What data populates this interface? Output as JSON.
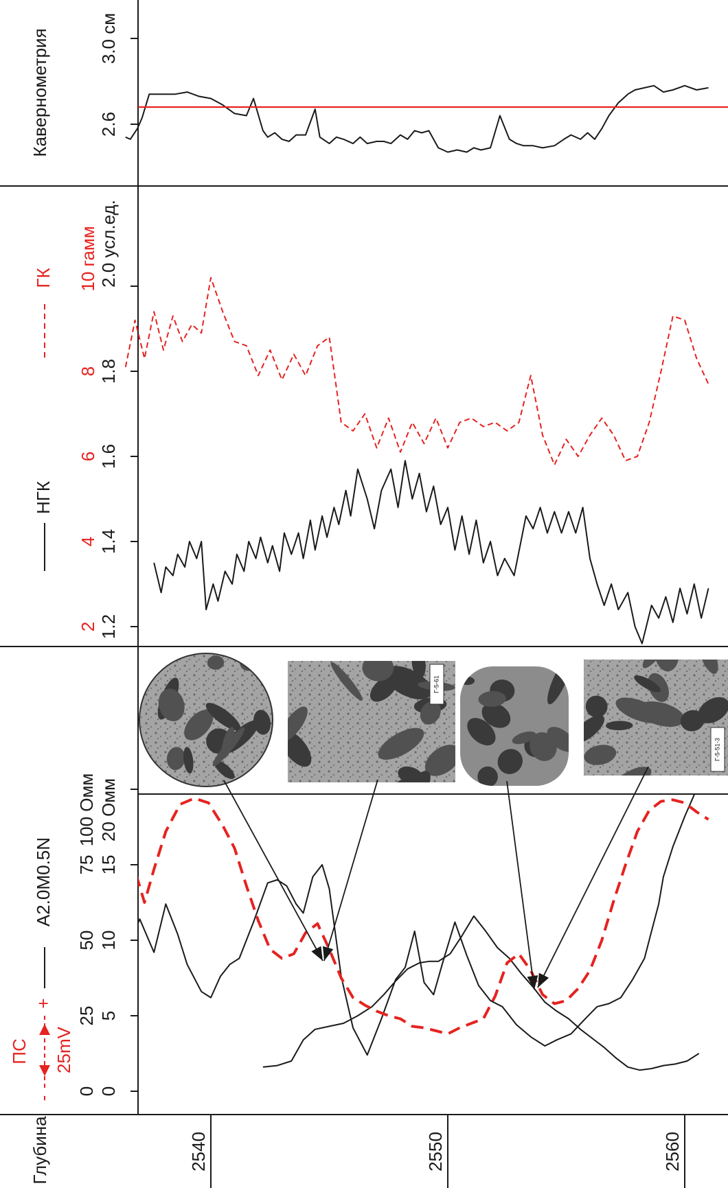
{
  "chart_data": {
    "type": "line",
    "orientation": "depth axis horizontal (figure rotated 90 degrees)",
    "depth_axis": {
      "label": "Глубина",
      "ticks": [
        2540,
        2550,
        2560
      ],
      "range": [
        2536.3,
        2561.2
      ]
    },
    "tracks": [
      {
        "id": "caliper",
        "label": "Кавернометрия",
        "unit_tick_labels": [
          "2.6",
          "3.0 см"
        ],
        "ticks": [
          2.6,
          3.0
        ],
        "series": [
          {
            "name": "Кавернометрия",
            "color": "#1a1a1a",
            "style": "solid",
            "depth": [
              2536.4,
              2536.6,
              2536.9,
              2537.1,
              2537.4,
              2538.0,
              2538.5,
              2539.0,
              2539.5,
              2540.0,
              2540.5,
              2541.0,
              2541.5,
              2541.8,
              2542.2,
              2542.4,
              2542.7,
              2543.0,
              2543.3,
              2543.6,
              2544.0,
              2544.4,
              2544.6,
              2545.0,
              2545.3,
              2545.6,
              2546.0,
              2546.3,
              2546.6,
              2547.0,
              2547.3,
              2547.6,
              2548.0,
              2548.3,
              2548.6,
              2548.9,
              2549.2,
              2549.6,
              2550.0,
              2550.4,
              2550.8,
              2551.1,
              2551.4,
              2551.8,
              2552.2,
              2552.6,
              2552.9,
              2553.2,
              2553.6,
              2554.0,
              2554.5,
              2554.9,
              2555.2,
              2555.6,
              2555.9,
              2556.2,
              2556.5,
              2556.8,
              2557.2,
              2557.6,
              2557.9,
              2558.3,
              2558.7,
              2559.1,
              2559.5,
              2560.0,
              2560.5,
              2561.0
            ],
            "values": [
              2.54,
              2.53,
              2.58,
              2.63,
              2.74,
              2.74,
              2.74,
              2.75,
              2.73,
              2.72,
              2.69,
              2.65,
              2.64,
              2.72,
              2.57,
              2.54,
              2.56,
              2.53,
              2.52,
              2.55,
              2.55,
              2.67,
              2.54,
              2.51,
              2.54,
              2.53,
              2.51,
              2.54,
              2.51,
              2.52,
              2.52,
              2.51,
              2.55,
              2.53,
              2.57,
              2.56,
              2.57,
              2.49,
              2.47,
              2.48,
              2.47,
              2.49,
              2.48,
              2.49,
              2.64,
              2.53,
              2.51,
              2.5,
              2.5,
              2.49,
              2.5,
              2.53,
              2.55,
              2.53,
              2.56,
              2.53,
              2.58,
              2.64,
              2.7,
              2.74,
              2.76,
              2.77,
              2.78,
              2.75,
              2.76,
              2.78,
              2.76,
              2.77
            ]
          },
          {
            "name": "reference line",
            "color": "#e52320",
            "style": "solid",
            "value": 2.68
          }
        ]
      },
      {
        "id": "gamma",
        "label_gk": "ГК",
        "label_ngk": "НГК",
        "gk_unit": "гамм",
        "ngk_unit": "усл.ед.",
        "ngk_ticks": [
          "1.2",
          "1.4",
          "1.6",
          "1.8",
          "2.0 усл.ед."
        ],
        "gk_ticks": [
          "2",
          "4",
          "6",
          "8",
          "10 гамм"
        ],
        "series": [
          {
            "name": "НГК",
            "color": "#1a1a1a",
            "style": "solid",
            "depth": [
              2537.6,
              2537.9,
              2538.1,
              2538.4,
              2538.6,
              2538.9,
              2539.1,
              2539.4,
              2539.6,
              2539.8,
              2540.1,
              2540.3,
              2540.6,
              2540.9,
              2541.1,
              2541.4,
              2541.6,
              2541.9,
              2542.1,
              2542.4,
              2542.6,
              2542.9,
              2543.1,
              2543.4,
              2543.7,
              2543.9,
              2544.2,
              2544.4,
              2544.7,
              2544.9,
              2545.2,
              2545.4,
              2545.7,
              2545.9,
              2546.2,
              2546.6,
              2546.9,
              2547.2,
              2547.6,
              2547.9,
              2548.2,
              2548.5,
              2548.8,
              2549.1,
              2549.4,
              2549.7,
              2550.0,
              2550.3,
              2550.6,
              2550.9,
              2551.2,
              2551.5,
              2551.8,
              2552.1,
              2552.4,
              2552.8,
              2553.3,
              2553.6,
              2553.9,
              2554.2,
              2554.5,
              2554.8,
              2555.1,
              2555.4,
              2555.7,
              2556.0,
              2556.3,
              2556.6,
              2556.9,
              2557.2,
              2557.6,
              2557.9,
              2558.2,
              2558.6,
              2558.9,
              2559.2,
              2559.5,
              2559.8,
              2560.1,
              2560.4,
              2560.7,
              2561.0
            ],
            "values": [
              1.35,
              1.28,
              1.34,
              1.32,
              1.37,
              1.34,
              1.4,
              1.36,
              1.4,
              1.24,
              1.3,
              1.26,
              1.33,
              1.3,
              1.37,
              1.33,
              1.4,
              1.36,
              1.41,
              1.35,
              1.39,
              1.33,
              1.42,
              1.37,
              1.42,
              1.36,
              1.45,
              1.38,
              1.46,
              1.41,
              1.48,
              1.44,
              1.52,
              1.46,
              1.57,
              1.5,
              1.43,
              1.52,
              1.57,
              1.48,
              1.59,
              1.5,
              1.56,
              1.47,
              1.53,
              1.44,
              1.48,
              1.38,
              1.46,
              1.37,
              1.45,
              1.35,
              1.4,
              1.32,
              1.36,
              1.32,
              1.46,
              1.43,
              1.48,
              1.42,
              1.47,
              1.42,
              1.47,
              1.42,
              1.48,
              1.36,
              1.3,
              1.25,
              1.3,
              1.24,
              1.28,
              1.2,
              1.16,
              1.25,
              1.22,
              1.27,
              1.21,
              1.29,
              1.23,
              1.3,
              1.22,
              1.29
            ]
          },
          {
            "name": "ГК",
            "color": "#e52320",
            "style": "dashed",
            "depth": [
              2536.4,
              2536.8,
              2537.2,
              2537.6,
              2538.0,
              2538.4,
              2538.8,
              2539.2,
              2539.6,
              2540.0,
              2540.5,
              2541.0,
              2541.5,
              2542.0,
              2542.5,
              2543.0,
              2543.5,
              2544.0,
              2544.5,
              2545.0,
              2545.5,
              2546.0,
              2546.5,
              2547.0,
              2547.5,
              2548.0,
              2548.5,
              2549.0,
              2549.5,
              2550.0,
              2550.5,
              2551.0,
              2551.5,
              2552.0,
              2552.5,
              2553.0,
              2553.5,
              2554.0,
              2554.5,
              2555.0,
              2555.5,
              2556.0,
              2556.5,
              2557.0,
              2557.5,
              2558.0,
              2558.5,
              2559.0,
              2559.5,
              2560.0,
              2560.5,
              2561.0
            ],
            "values": [
              8.1,
              9.2,
              8.3,
              9.4,
              8.5,
              9.3,
              8.7,
              9.1,
              8.9,
              10.2,
              9.4,
              8.7,
              8.6,
              7.9,
              8.5,
              7.8,
              8.4,
              7.9,
              8.6,
              8.8,
              6.8,
              6.6,
              7.0,
              6.2,
              6.9,
              6.1,
              6.8,
              6.3,
              6.9,
              6.2,
              6.8,
              6.9,
              6.7,
              6.8,
              6.6,
              6.8,
              7.9,
              6.5,
              5.8,
              6.4,
              6.0,
              6.5,
              6.9,
              6.5,
              5.9,
              6.0,
              6.8,
              8.0,
              9.3,
              9.2,
              8.3,
              7.7
            ]
          }
        ]
      },
      {
        "id": "resistivity",
        "label_ps": "ПС",
        "label_ps_scale": "25mV",
        "label_res": "A2.0M0.5N",
        "res_ticks_outer": [
          "0",
          "25",
          "50",
          "75",
          "100 Омм"
        ],
        "res_ticks_inner": [
          "0",
          "5",
          "10",
          "15",
          "20 Омм"
        ],
        "series": [
          {
            "name": "A2.0M0.5N",
            "color": "#1a1a1a",
            "style": "solid",
            "depth": [
              2536.4,
              2537.0,
              2537.6,
              2538.1,
              2538.6,
              2539.0,
              2539.6,
              2540.0,
              2540.4,
              2540.8,
              2541.2,
              2541.8,
              2542.4,
              2542.8,
              2543.2,
              2543.6,
              2543.9,
              2544.3,
              2544.7,
              2545.0,
              2545.5,
              2546.0,
              2546.6,
              2547.2,
              2547.8,
              2548.2,
              2548.6,
              2549.0,
              2549.4,
              2549.8,
              2550.3,
              2550.8,
              2551.3,
              2551.8,
              2552.3,
              2552.9,
              2553.5,
              2554.1,
              2554.6,
              2555.2,
              2555.8,
              2556.3,
              2556.8,
              2557.3,
              2557.8,
              2558.3,
              2558.6,
              2558.9,
              2559.1,
              2559.5,
              2560.0,
              2560.5,
              2561.0
            ],
            "values": [
              46,
              57,
              46,
              62,
              52,
              42,
              33,
              31,
              38,
              42,
              44,
              56,
              69,
              70,
              68,
              62,
              59,
              71,
              75,
              67,
              38,
              21,
              12,
              24,
              37,
              41,
              53,
              36,
              32,
              43,
              56,
              45,
              35,
              30,
              28,
              22,
              18,
              15,
              17,
              19,
              24,
              28,
              29,
              31,
              37,
              44,
              53,
              62,
              71,
              81,
              91,
              100,
              100
            ]
          },
          {
            "name": "A2.0M0.5N inner",
            "color": "#1a1a1a",
            "style": "solid",
            "depth": [
              2542.2,
              2542.8,
              2543.4,
              2543.9,
              2544.4,
              2545.0,
              2545.6,
              2546.2,
              2546.8,
              2547.3,
              2547.8,
              2548.3,
              2548.8,
              2549.2,
              2549.6,
              2550.1,
              2550.6,
              2551.1,
              2551.6,
              2552.1,
              2552.6,
              2553.1,
              2553.6,
              2554.1,
              2554.6,
              2555.1,
              2555.6,
              2556.1,
              2556.6,
              2557.1,
              2557.6,
              2558.1,
              2558.6,
              2559.1,
              2559.6,
              2560.1,
              2560.6
            ],
            "values": [
              1.6,
              1.7,
              2.0,
              3.4,
              4.1,
              4.3,
              4.5,
              5.0,
              5.6,
              6.4,
              7.3,
              8.1,
              8.5,
              8.6,
              8.6,
              9.1,
              10.3,
              11.6,
              10.6,
              9.5,
              8.8,
              7.8,
              6.9,
              5.9,
              5.3,
              4.8,
              4.1,
              3.5,
              2.9,
              2.2,
              1.6,
              1.4,
              1.5,
              1.7,
              1.8,
              2.0,
              2.5
            ]
          },
          {
            "name": "ПС",
            "color": "#e52320",
            "style": "dashed",
            "depth": [
              2536.4,
              2536.8,
              2537.2,
              2537.6,
              2538.1,
              2538.7,
              2539.3,
              2539.9,
              2540.5,
              2541.0,
              2541.5,
              2542.0,
              2542.5,
              2543.0,
              2543.5,
              2544.0,
              2544.5,
              2545.0,
              2545.5,
              2546.0,
              2546.5,
              2547.0,
              2547.5,
              2548.0,
              2548.5,
              2549.0,
              2549.5,
              2550.0,
              2550.5,
              2551.0,
              2551.5,
              2552.0,
              2552.5,
              2553.0,
              2553.5,
              2554.0,
              2554.5,
              2555.0,
              2555.5,
              2556.0,
              2556.5,
              2557.0,
              2557.5,
              2558.0,
              2558.5,
              2559.0,
              2559.5,
              2560.0,
              2560.5,
              2561.0
            ],
            "values": [
              12.4,
              14.6,
              12.5,
              14.7,
              17.2,
              19.0,
              19.4,
              19.1,
              17.6,
              16.1,
              13.6,
              11.3,
              9.4,
              8.8,
              9.1,
              10.5,
              11.1,
              9.4,
              7.5,
              6.2,
              5.7,
              5.3,
              5.0,
              4.8,
              4.3,
              4.2,
              4.0,
              3.8,
              4.2,
              4.5,
              4.8,
              6.3,
              8.5,
              9.1,
              8.0,
              6.4,
              5.8,
              6.0,
              6.8,
              8.0,
              10.0,
              12.6,
              15.0,
              17.2,
              18.6,
              19.2,
              19.3,
              19.1,
              18.5,
              18.0
            ]
          }
        ]
      }
    ],
    "photo_labels": [
      "Г-5-61",
      "Г-5-51-3"
    ],
    "grid": false,
    "legend": "track headers"
  }
}
